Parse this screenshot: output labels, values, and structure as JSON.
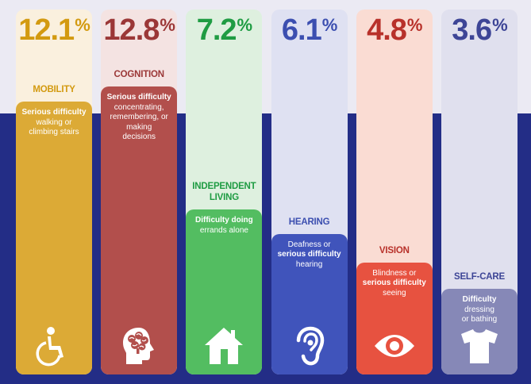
{
  "chart_data": {
    "type": "bar",
    "categories": [
      "MOBILITY",
      "COGNITION",
      "INDEPENDENT LIVING",
      "HEARING",
      "VISION",
      "SELF-CARE"
    ],
    "values": [
      12.1,
      12.8,
      7.2,
      6.1,
      4.8,
      3.6
    ],
    "value_suffix": "%",
    "title": "",
    "xlabel": "",
    "ylabel": "",
    "grid": false
  },
  "columns": [
    {
      "value": "12.1",
      "suffix": "%",
      "label_lines": [
        "MOBILITY"
      ],
      "desc_bold": "Serious difficulty",
      "desc_lines": [
        "walking or",
        "climbing stairs"
      ],
      "icon": "wheelchair-icon",
      "value_color": "#d39a10",
      "card_color": "#dcaa36",
      "light_color": "#faf0de"
    },
    {
      "value": "12.8",
      "suffix": "%",
      "label_lines": [
        "COGNITION"
      ],
      "desc_bold": "Serious difficulty",
      "desc_lines": [
        "concentrating,",
        "remembering, or",
        "making",
        "decisions"
      ],
      "icon": "brain-head-icon",
      "value_color": "#9b3737",
      "card_color": "#b24f4c",
      "light_color": "#f4e3e2"
    },
    {
      "value": "7.2",
      "suffix": "%",
      "label_lines": [
        "INDEPENDENT",
        "LIVING"
      ],
      "desc_bold": "Difficulty doing",
      "desc_lines": [
        "errands alone"
      ],
      "icon": "house-icon",
      "value_color": "#1f9c43",
      "card_color": "#53bd61",
      "light_color": "#def0df"
    },
    {
      "value": "6.1",
      "suffix": "%",
      "label_lines": [
        "HEARING"
      ],
      "desc_lines_pre": [
        "Deafness or"
      ],
      "desc_bold": "serious difficulty",
      "desc_lines": [
        "hearing"
      ],
      "icon": "ear-icon",
      "value_color": "#3c4fb0",
      "card_color": "#4054bb",
      "light_color": "#dfe1f2"
    },
    {
      "value": "4.8",
      "suffix": "%",
      "label_lines": [
        "VISION"
      ],
      "desc_lines_pre": [
        "Blindness or"
      ],
      "desc_bold": "serious difficulty",
      "desc_lines": [
        "seeing"
      ],
      "icon": "eye-icon",
      "value_color": "#b8312a",
      "card_color": "#e75240",
      "light_color": "#fadcd3"
    },
    {
      "value": "3.6",
      "suffix": "%",
      "label_lines": [
        "SELF-CARE"
      ],
      "desc_bold": "Difficulty",
      "desc_lines": [
        "dressing",
        "or bathing"
      ],
      "icon": "shirt-icon",
      "value_color": "#3d4596",
      "card_color": "#8688b7",
      "light_color": "#e0e0ee"
    }
  ]
}
